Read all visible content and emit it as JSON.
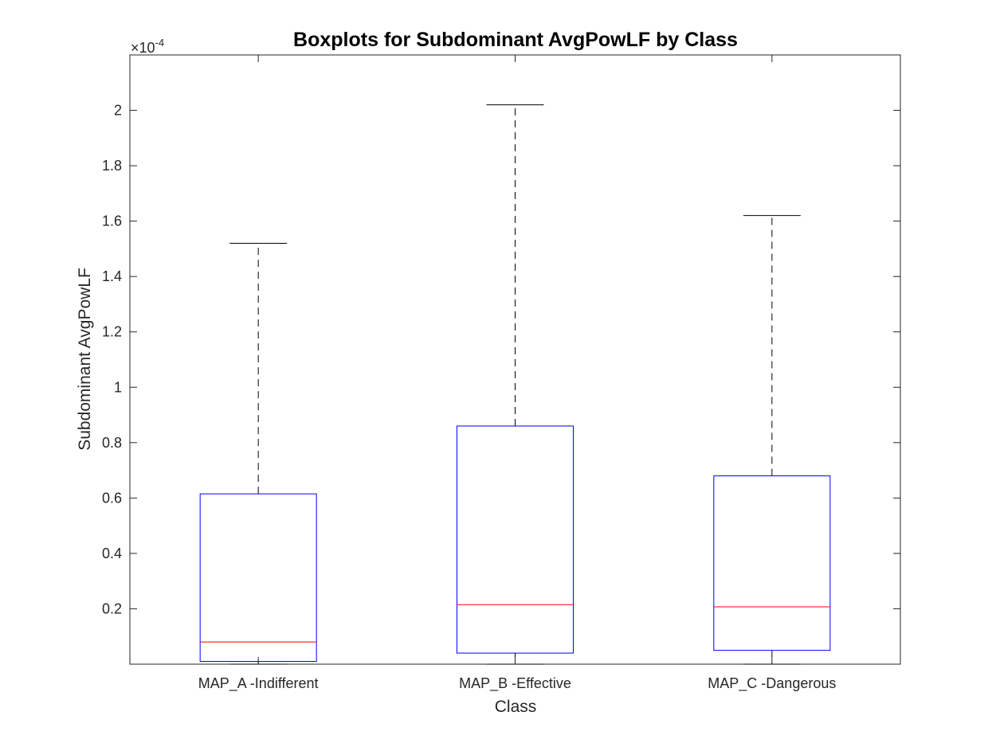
{
  "chart_data": {
    "type": "boxplot",
    "title": "Boxplots for Subdominant AvgPowLF by Class",
    "xlabel": "Class",
    "ylabel": "Subdominant AvgPowLF",
    "y_multiplier_base": "×10",
    "y_multiplier_exponent": "-4",
    "ylim": [
      0,
      2.2
    ],
    "yticks": [
      0.2,
      0.4,
      0.6,
      0.8,
      1,
      1.2,
      1.4,
      1.6,
      1.8,
      2
    ],
    "ytick_labels": [
      "0.2",
      "0.4",
      "0.6",
      "0.8",
      "1",
      "1.2",
      "1.4",
      "1.6",
      "1.8",
      "2"
    ],
    "categories": [
      "MAP_A -Indifferent",
      "MAP_B -Effective",
      "MAP_C -Dangerous"
    ],
    "boxes": [
      {
        "whisker_low": 0.0,
        "q1": 0.01,
        "median": 0.08,
        "q3": 0.615,
        "whisker_high": 1.52
      },
      {
        "whisker_low": 0.0,
        "q1": 0.04,
        "median": 0.215,
        "q3": 0.86,
        "whisker_high": 2.02
      },
      {
        "whisker_low": 0.0,
        "q1": 0.05,
        "median": 0.207,
        "q3": 0.68,
        "whisker_high": 1.62
      }
    ],
    "box_color": "#0000ff",
    "median_color": "#ff0000",
    "whisker_color": "#000000",
    "grid": false
  }
}
